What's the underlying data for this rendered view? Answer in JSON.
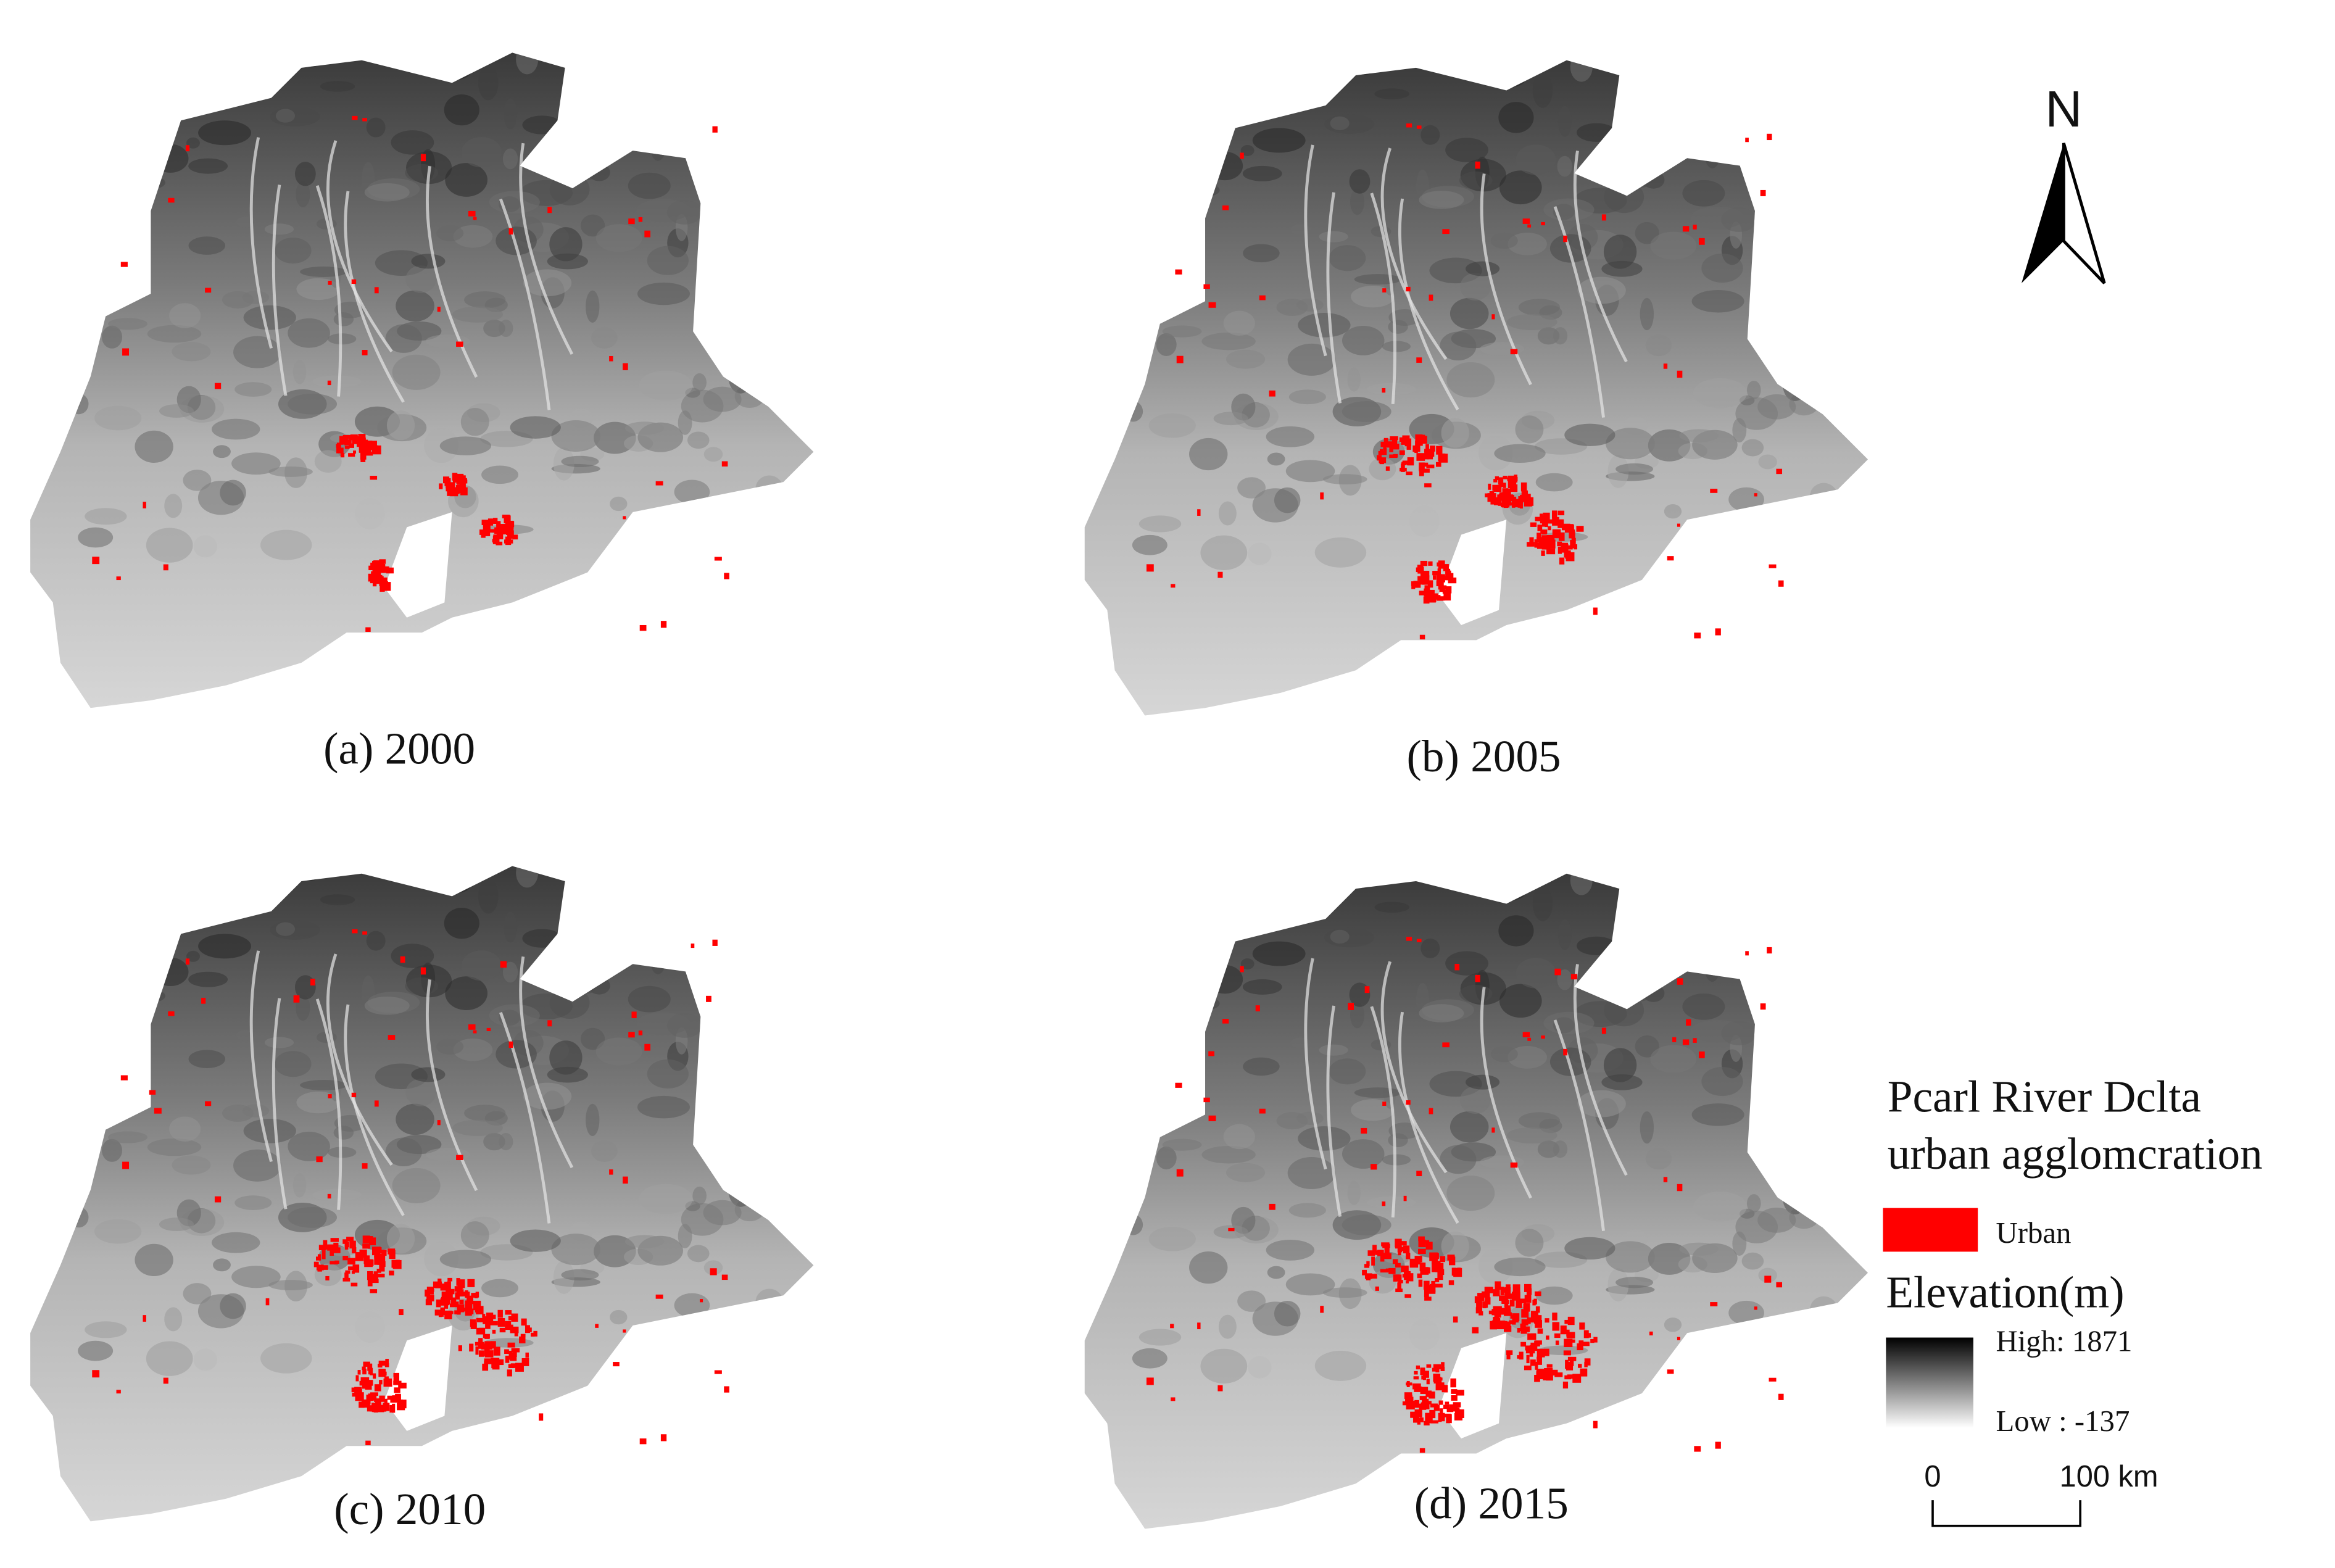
{
  "panels": [
    {
      "label": "(a) 2000"
    },
    {
      "label": "(b) 2005"
    },
    {
      "label": "(c) 2010"
    },
    {
      "label": "(d) 2015"
    }
  ],
  "north": "N",
  "legend": {
    "title": [
      "Pcarl River Dclta",
      "urban agglomcration"
    ],
    "urban": "Urban",
    "elevation": {
      "title": "Elevation(m)",
      "high": "High: 1871",
      "low": "Low : -137"
    },
    "scale": {
      "start": "0",
      "end": "100 km"
    }
  }
}
